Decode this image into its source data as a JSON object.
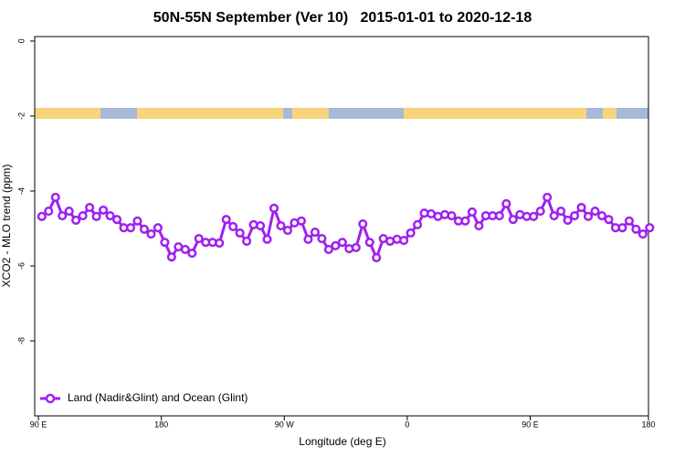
{
  "chart_data": {
    "type": "line",
    "title": "50N-55N September (Ver 10)   2015-01-01 to 2020-12-18",
    "x_label": "Longitude (deg E)",
    "y_label": "XCO2 - MLO trend (ppm)",
    "xlim": [
      87.3,
      536.6
    ],
    "xticks": [
      {
        "value": 90,
        "label": "90 E"
      },
      180,
      {
        "value": 270,
        "label": "90 W"
      },
      {
        "value": 360,
        "label": "0"
      },
      {
        "value": 450,
        "label": "90 E"
      },
      {
        "value": 540,
        "label": "180"
      }
    ],
    "ylim": [
      -10,
      0.12
    ],
    "yticks": [
      0,
      -2,
      -4,
      -6,
      -8
    ],
    "legend": "bottom-left",
    "series": [
      {
        "name": "Land (Nadir&Glint) and Ocean (Glint)",
        "color": "#a020f0",
        "x": [
          92.5,
          97.5,
          102.5,
          107.5,
          112.5,
          117.5,
          122.5,
          127.5,
          132.5,
          137.5,
          142.5,
          147.5,
          152.5,
          157.5,
          162.5,
          167.5,
          172.5,
          177.5,
          182.5,
          187.5,
          192.5,
          197.5,
          202.5,
          207.5,
          212.5,
          217.5,
          222.5,
          227.5,
          232.5,
          237.5,
          242.5,
          247.5,
          252.5,
          257.5,
          262.5,
          267.5,
          272.5,
          277.5,
          282.5,
          287.5,
          292.5,
          297.5,
          302.5,
          307.5,
          312.5,
          317.5,
          322.5,
          327.5,
          332.5,
          337.5,
          342.5,
          347.5,
          352.5,
          357.5,
          362.5,
          367.5,
          372.5,
          377.5,
          382.5,
          387.5,
          392.5,
          397.5,
          402.5,
          407.5,
          412.5,
          417.5,
          422.5,
          427.5,
          432.5,
          437.5,
          442.5,
          447.5,
          452.5,
          457.5,
          462.5,
          467.5,
          472.5,
          477.5,
          482.5,
          487.5,
          492.5,
          497.5,
          502.5,
          507.5,
          512.5,
          517.5,
          522.5,
          527.5,
          532.5,
          537.5
        ],
        "values": [
          -4.68,
          -4.54,
          -4.17,
          -4.66,
          -4.54,
          -4.78,
          -4.66,
          -4.44,
          -4.68,
          -4.51,
          -4.66,
          -4.76,
          -4.98,
          -4.98,
          -4.8,
          -5.02,
          -5.15,
          -4.98,
          -5.37,
          -5.76,
          -5.49,
          -5.56,
          -5.66,
          -5.27,
          -5.37,
          -5.37,
          -5.39,
          -4.76,
          -4.95,
          -5.12,
          -5.34,
          -4.9,
          -4.93,
          -5.29,
          -4.46,
          -4.93,
          -5.05,
          -4.85,
          -4.8,
          -5.29,
          -5.1,
          -5.27,
          -5.56,
          -5.46,
          -5.37,
          -5.54,
          -5.51,
          -4.88,
          -5.37,
          -5.78,
          -5.27,
          -5.34,
          -5.29,
          -5.32,
          -5.12,
          -4.9,
          -4.59,
          -4.61,
          -4.68,
          -4.63,
          -4.66,
          -4.8,
          -4.8,
          -4.56,
          -4.93,
          -4.66,
          -4.66,
          -4.66,
          -4.34,
          -4.76,
          -4.63,
          -4.68,
          -4.68,
          -4.54,
          -4.17,
          -4.66,
          -4.54,
          -4.78,
          -4.66,
          -4.44,
          -4.68,
          -4.54,
          -4.66,
          -4.76,
          -4.98,
          -4.98,
          -4.8,
          -5.02,
          -5.15,
          -4.98
        ]
      }
    ]
  }
}
